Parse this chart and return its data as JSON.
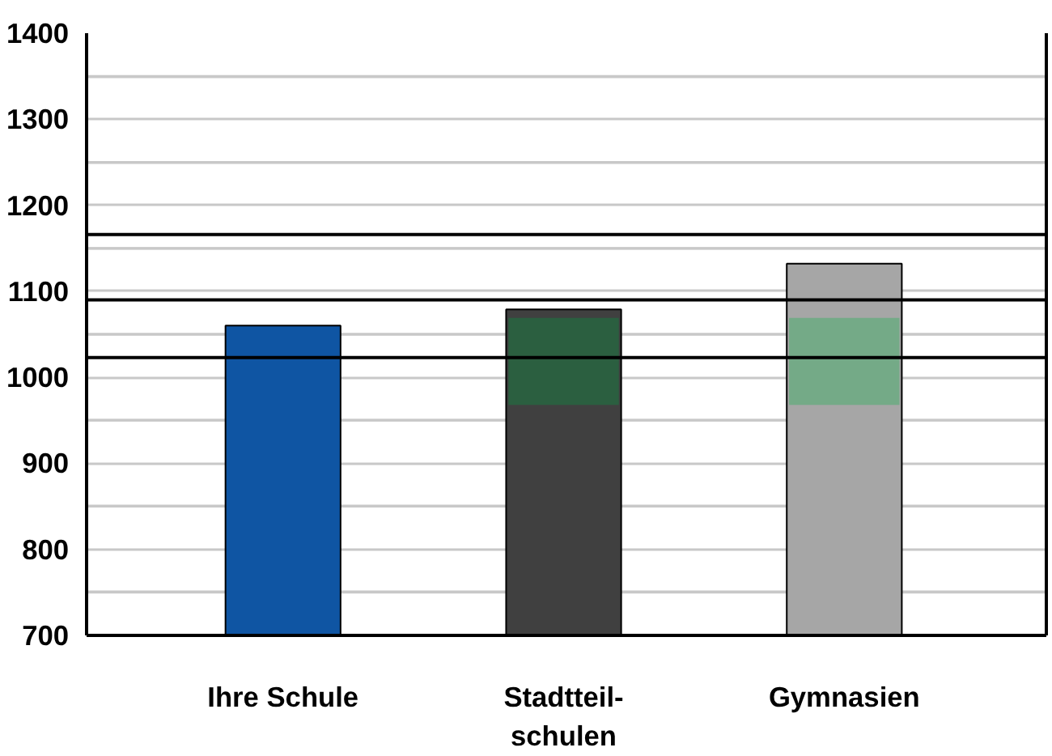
{
  "chart_data": {
    "type": "bar",
    "categories": [
      "Ihre Schule",
      "Stadtteil-\nschulen",
      "Gymnasien"
    ],
    "series": [
      {
        "colors": [
          "#0f55a3",
          "#404040",
          "#a6a6a6"
        ],
        "values": [
          1060,
          1079,
          1132
        ]
      },
      {
        "colors": [
          null,
          "#2b5f40",
          "#74aa87"
        ],
        "base": [
          null,
          968,
          968
        ],
        "values": [
          null,
          101,
          101
        ]
      }
    ],
    "ylim": [
      700,
      1400
    ],
    "yticks": [
      700,
      {
        "value": 750,
        "label": null
      },
      800,
      {
        "value": 850,
        "label": null
      },
      900,
      {
        "value": 950,
        "label": null
      },
      1000,
      {
        "value": 1050,
        "label": null
      },
      1100,
      {
        "value": 1150,
        "label": null
      },
      1200,
      {
        "value": 1250,
        "label": null
      },
      1300,
      {
        "value": 1350,
        "label": null
      },
      1400
    ],
    "grid": "y",
    "ref_lines": [
      {
        "axis": "y",
        "value": 1023,
        "color": "#000000"
      },
      {
        "axis": "y",
        "value": 1090,
        "color": "#000000"
      },
      {
        "axis": "y",
        "value": 1166,
        "color": "#000000"
      }
    ]
  }
}
